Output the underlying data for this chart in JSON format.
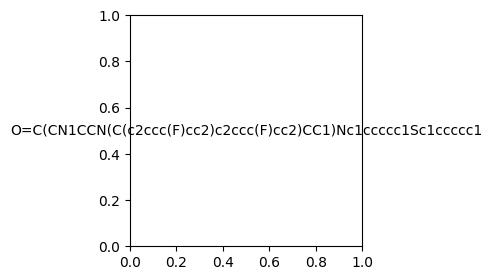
{
  "smiles": "O=C(CN1CCN(C(c2ccc(F)cc2)c2ccc(F)cc2)CC1)Nc1ccccc1Sc1ccccc1",
  "image_size": 300,
  "background_color": "#e8eef5",
  "atom_colors": {
    "N": "#0000ff",
    "O": "#ff0000",
    "S": "#ccaa00",
    "F": "#ff69b4"
  }
}
